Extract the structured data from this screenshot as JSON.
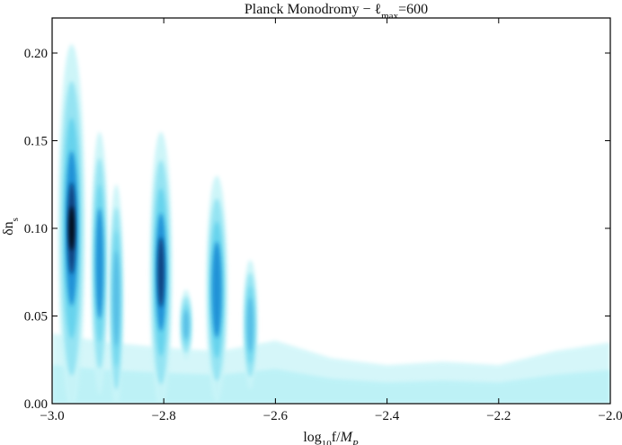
{
  "chart_data": {
    "type": "heatmap",
    "title": "Planck Monodromy − ℓ",
    "title_sub": "max",
    "title_tail": "=600",
    "xlabel": "log",
    "xlabel_sub": "10",
    "xlabel_tail": "f/",
    "xlabel_italic": "M",
    "xlabel_italic_sub": "P",
    "ylabel": "δn",
    "ylabel_sub": "s",
    "xlim": [
      -3.0,
      -2.0
    ],
    "ylim": [
      0.0,
      0.22
    ],
    "x_ticks": [
      -3.0,
      -2.8,
      -2.6,
      -2.4,
      -2.2,
      -2.0
    ],
    "x_tick_labels": [
      "−3.0",
      "−2.8",
      "−2.6",
      "−2.4",
      "−2.2",
      "−2.0"
    ],
    "y_ticks": [
      0.0,
      0.05,
      0.1,
      0.15,
      0.2
    ],
    "y_tick_labels": [
      "0.00",
      "0.05",
      "0.10",
      "0.15",
      "0.20"
    ],
    "grid": false,
    "colormap": [
      "#ffffff",
      "#c8f4f8",
      "#5fd0ec",
      "#1a8fd6",
      "#0a3c7a",
      "#000000"
    ],
    "peaks": [
      {
        "x": -2.965,
        "y_center": 0.1,
        "y_top": 0.205,
        "intensity": 1.0
      },
      {
        "x": -2.915,
        "y_center": 0.08,
        "y_top": 0.155,
        "intensity": 0.45
      },
      {
        "x": -2.885,
        "y_center": 0.06,
        "y_top": 0.125,
        "intensity": 0.3
      },
      {
        "x": -2.805,
        "y_center": 0.075,
        "y_top": 0.155,
        "intensity": 0.75
      },
      {
        "x": -2.76,
        "y_center": 0.045,
        "y_top": 0.065,
        "intensity": 0.2
      },
      {
        "x": -2.705,
        "y_center": 0.065,
        "y_top": 0.13,
        "intensity": 0.7
      },
      {
        "x": -2.645,
        "y_center": 0.045,
        "y_top": 0.082,
        "intensity": 0.3
      }
    ],
    "background_band": [
      {
        "x": -3.0,
        "y": 0.04
      },
      {
        "x": -2.9,
        "y": 0.035
      },
      {
        "x": -2.8,
        "y": 0.032
      },
      {
        "x": -2.7,
        "y": 0.03
      },
      {
        "x": -2.6,
        "y": 0.036
      },
      {
        "x": -2.5,
        "y": 0.026
      },
      {
        "x": -2.4,
        "y": 0.022
      },
      {
        "x": -2.3,
        "y": 0.024
      },
      {
        "x": -2.2,
        "y": 0.022
      },
      {
        "x": -2.1,
        "y": 0.03
      },
      {
        "x": -2.0,
        "y": 0.035
      }
    ]
  }
}
